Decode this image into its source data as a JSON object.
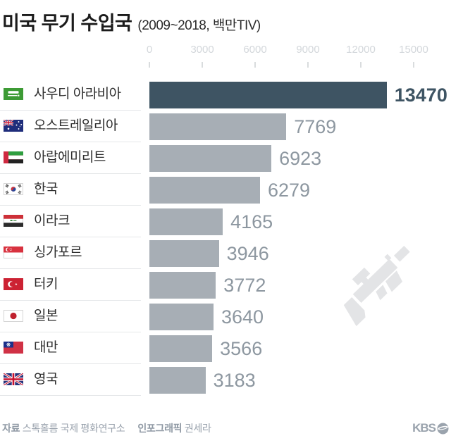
{
  "header": {
    "title": "미국 무기 수입국",
    "subtitle": "(2009~2018, 백만TIV)"
  },
  "chart_data": {
    "type": "bar",
    "orientation": "horizontal",
    "title": "미국 무기 수입국",
    "period": "2009~2018",
    "unit": "백만TIV",
    "categories": [
      "사우디 아라비아",
      "오스트레일리아",
      "아랍에미리트",
      "한국",
      "이라크",
      "싱가포르",
      "터키",
      "일본",
      "대만",
      "영국"
    ],
    "values": [
      13470,
      7769,
      6923,
      6279,
      4165,
      3946,
      3772,
      3640,
      3566,
      3183
    ],
    "country_codes": [
      "sa",
      "au",
      "ae",
      "kr",
      "iq",
      "sg",
      "tr",
      "jp",
      "tw",
      "gb"
    ],
    "highlight_index": 0,
    "axis": {
      "ticks": [
        0,
        3000,
        6000,
        9000,
        12000,
        15000
      ],
      "max": 15000
    },
    "legend": null,
    "grid": false,
    "colors": {
      "highlight_bar": "#3e5463",
      "bar": "#a7aeb5",
      "highlight_value": "#3e5463",
      "value": "#8d97a0",
      "axis_label": "#d3d7db"
    }
  },
  "watermark": {
    "icon": "sniper-rifle-icon",
    "color": "#e3e4e6"
  },
  "footer": {
    "source_label": "자료",
    "source": "스톡홀름 국제 평화연구소",
    "credit_label": "인포그래픽",
    "credit": "권세라",
    "logo": "KBS"
  }
}
